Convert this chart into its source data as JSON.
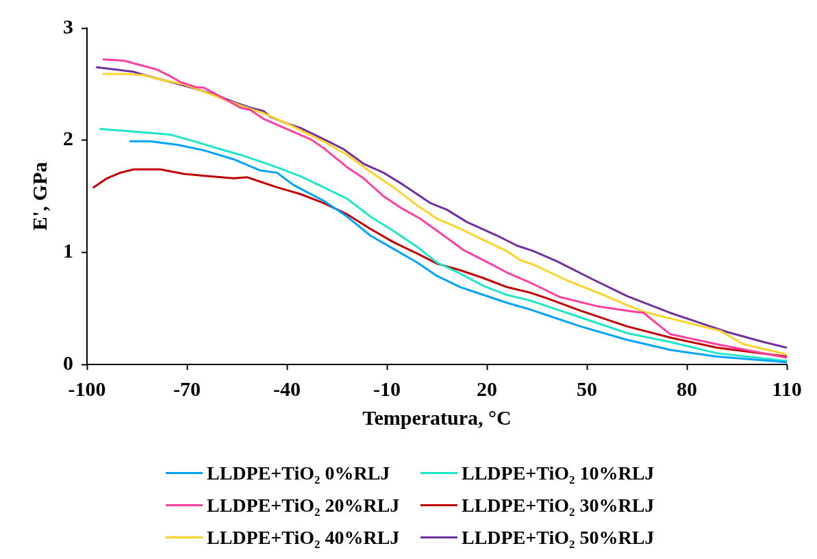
{
  "chart_data": {
    "type": "line",
    "xlabel": "Temperatura, °C",
    "ylabel": "E', GPa",
    "xlim": [
      -100,
      110
    ],
    "xticks": [
      -100,
      -70,
      -40,
      -10,
      20,
      50,
      80,
      110
    ],
    "ylim": [
      0,
      3
    ],
    "yticks": [
      0,
      1,
      2,
      3
    ],
    "legend": "bottom",
    "marker": "none",
    "line_style": "solid",
    "series": [
      {
        "name": "LLDPE+TiO₂ 0%RLJ",
        "color": "#00a3ff",
        "x": [
          -87,
          -81,
          -73,
          -65,
          -56,
          -48,
          -43,
          -38,
          -29,
          -22,
          -15,
          -8,
          -1,
          5,
          12,
          19,
          26,
          33,
          38,
          48,
          62,
          75,
          89,
          110
        ],
        "values": [
          1.99,
          1.99,
          1.96,
          1.91,
          1.83,
          1.73,
          1.71,
          1.6,
          1.46,
          1.32,
          1.15,
          1.03,
          0.91,
          0.79,
          0.69,
          0.62,
          0.55,
          0.49,
          0.44,
          0.34,
          0.22,
          0.13,
          0.07,
          0.02
        ]
      },
      {
        "name": "LLDPE+TiO₂ 10%RLJ",
        "color": "#1ee6c8",
        "x": [
          -96,
          -83,
          -75,
          -69,
          -60,
          -54,
          -45,
          -36,
          -29,
          -22,
          -15,
          -8,
          -1,
          5,
          12,
          19,
          26,
          33,
          38,
          48,
          62,
          75,
          89,
          110
        ],
        "values": [
          2.1,
          2.07,
          2.05,
          2.0,
          1.92,
          1.87,
          1.78,
          1.68,
          1.58,
          1.48,
          1.32,
          1.19,
          1.05,
          0.91,
          0.81,
          0.7,
          0.62,
          0.57,
          0.52,
          0.42,
          0.28,
          0.2,
          0.1,
          0.03
        ]
      },
      {
        "name": "LLDPE+TiO₂ 20%RLJ",
        "color": "#ff409f",
        "x": [
          -95,
          -89,
          -84,
          -79,
          -75,
          -72,
          -67,
          -65,
          -60,
          -54,
          -51,
          -47,
          -40,
          -33,
          -29,
          -22,
          -17,
          -11,
          -6,
          0,
          7,
          13,
          19,
          26,
          33,
          42,
          53,
          62,
          67,
          75,
          89,
          110
        ],
        "values": [
          2.72,
          2.71,
          2.67,
          2.63,
          2.57,
          2.52,
          2.47,
          2.47,
          2.39,
          2.29,
          2.27,
          2.19,
          2.1,
          2.01,
          1.93,
          1.76,
          1.66,
          1.5,
          1.4,
          1.3,
          1.15,
          1.02,
          0.93,
          0.82,
          0.73,
          0.6,
          0.52,
          0.48,
          0.46,
          0.27,
          0.18,
          0.06
        ]
      },
      {
        "name": "LLDPE+TiO₂ 30%RLJ",
        "color": "#c00000",
        "x": [
          -98,
          -94,
          -90,
          -86,
          -82,
          -78,
          -71,
          -64,
          -56,
          -52,
          -48,
          -43,
          -36,
          -29,
          -22,
          -15,
          -8,
          -1,
          5,
          12,
          19,
          26,
          33,
          38,
          48,
          62,
          75,
          89,
          110
        ],
        "values": [
          1.58,
          1.66,
          1.71,
          1.74,
          1.74,
          1.74,
          1.7,
          1.68,
          1.66,
          1.67,
          1.63,
          1.58,
          1.52,
          1.44,
          1.34,
          1.21,
          1.09,
          0.99,
          0.9,
          0.84,
          0.77,
          0.69,
          0.64,
          0.59,
          0.48,
          0.34,
          0.24,
          0.15,
          0.07
        ]
      },
      {
        "name": "LLDPE+TiO₂ 40%RLJ",
        "color": "#ffd32a",
        "x": [
          -95,
          -88,
          -83,
          -78,
          -71,
          -62,
          -54,
          -47,
          -40,
          -36,
          -29,
          -22,
          -15,
          -8,
          -1,
          5,
          12,
          19,
          26,
          30,
          34,
          44,
          55,
          62,
          67,
          75,
          90,
          97,
          110
        ],
        "values": [
          2.59,
          2.59,
          2.58,
          2.54,
          2.5,
          2.4,
          2.31,
          2.24,
          2.15,
          2.09,
          1.99,
          1.87,
          1.72,
          1.58,
          1.42,
          1.3,
          1.21,
          1.11,
          1.01,
          0.93,
          0.89,
          0.75,
          0.62,
          0.53,
          0.47,
          0.41,
          0.3,
          0.18,
          0.09
        ]
      },
      {
        "name": "LLDPE+TiO₂ 50%RLJ",
        "color": "#7030a0",
        "x": [
          -97,
          -86,
          -79,
          -71,
          -62,
          -54,
          -51,
          -47,
          -45,
          -40,
          -36,
          -27,
          -23,
          -17,
          -11,
          -5,
          3,
          8,
          14,
          23,
          29,
          34,
          41,
          51,
          62,
          75,
          82,
          92,
          103,
          110
        ],
        "values": [
          2.65,
          2.61,
          2.55,
          2.49,
          2.41,
          2.32,
          2.29,
          2.26,
          2.21,
          2.15,
          2.11,
          1.98,
          1.92,
          1.79,
          1.71,
          1.6,
          1.44,
          1.38,
          1.27,
          1.15,
          1.06,
          1.01,
          0.92,
          0.77,
          0.61,
          0.46,
          0.39,
          0.29,
          0.2,
          0.15
        ]
      }
    ]
  }
}
